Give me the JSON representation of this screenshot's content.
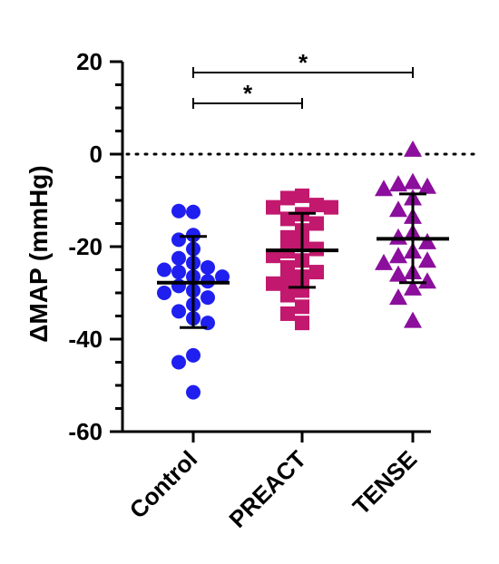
{
  "chart_data": {
    "type": "scatter",
    "ylabel": "ΔMAP (mmHg)",
    "ylim": [
      -60,
      20
    ],
    "yticks": [
      20,
      0,
      -20,
      -40,
      -60
    ],
    "ytick_labels": [
      "20",
      "0",
      "-20",
      "-40",
      "-60"
    ],
    "categories": [
      "Control",
      "PREACT",
      "TENSE"
    ],
    "reference_line": 0,
    "series": [
      {
        "name": "Control",
        "marker": "circle",
        "color": "#1f1ff0",
        "mean": -27.8,
        "sd_low": -37.5,
        "sd_high": -17.8,
        "values": [
          -12.5,
          -12.3,
          -17.5,
          -18.5,
          -20.5,
          -22.5,
          -23.5,
          -24.5,
          -25,
          -25.5,
          -26.5,
          -26.5,
          -27.5,
          -28.5,
          -29.5,
          -30,
          -31,
          -32.5,
          -34,
          -35.5,
          -36.5,
          -43.5,
          -45,
          -51.5
        ]
      },
      {
        "name": "PREACT",
        "marker": "square",
        "color": "#c2186e",
        "mean": -20.8,
        "sd_low": -28.8,
        "sd_high": -12.8,
        "values": [
          -9,
          -9.5,
          -11,
          -11.5,
          -11.5,
          -13,
          -14,
          -15,
          -16.5,
          -18,
          -19.5,
          -20.5,
          -21,
          -22,
          -23,
          -24.5,
          -25.5,
          -26.5,
          -27.5,
          -28,
          -29.5,
          -30.5,
          -33,
          -34.5,
          -36.5
        ]
      },
      {
        "name": "TENSE",
        "marker": "triangle",
        "color": "#8b0f9c",
        "mean": -18.3,
        "sd_low": -27.8,
        "sd_high": -8.6,
        "values": [
          1,
          -6,
          -6.5,
          -7,
          -7.5,
          -9.5,
          -12,
          -13.5,
          -17,
          -18,
          -19,
          -21,
          -22,
          -23,
          -23.5,
          -25.5,
          -26,
          -27.5,
          -29,
          -31,
          -36
        ]
      }
    ],
    "significance": [
      {
        "from": "Control",
        "to": "PREACT",
        "label": "*"
      },
      {
        "from": "Control",
        "to": "TENSE",
        "label": "*"
      }
    ]
  }
}
